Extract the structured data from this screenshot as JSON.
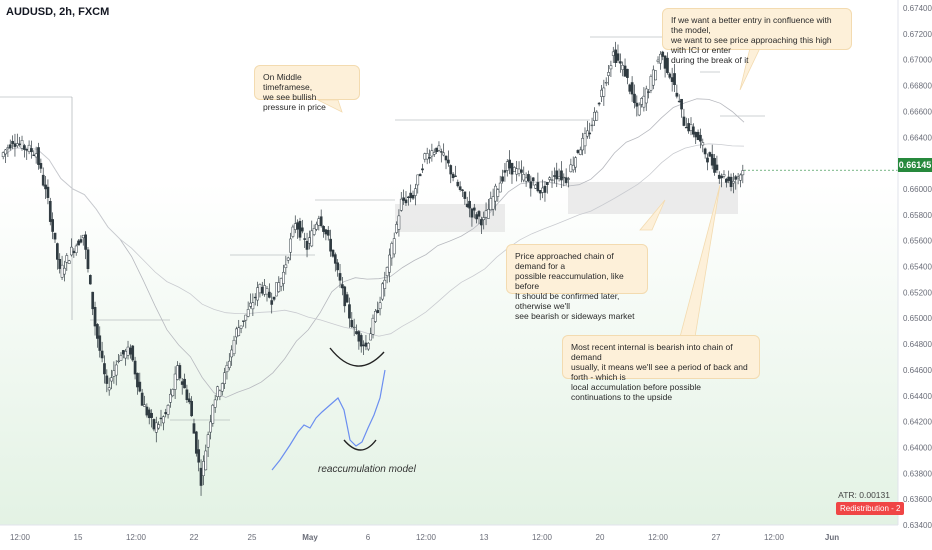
{
  "symbol_title": "AUDUSD, 2h, FXCM",
  "notes": {
    "middle": "On Middle timeframese,\nwe see bullish pressure in price",
    "entry": "If we want a better entry in confluence with the model,\nwe want to see price approaching this high with ICI or enter\nduring the break of it",
    "demand": "Price approached chain of demand for a\npossible reaccumulation, like before\nIt should be confirmed later, otherwise we'll\nsee bearish or sideways market",
    "internal": "Most recent internal is bearish into chain of demand\nusually, it means we'll see a period of back and forth - which is\nlocal accumulation before possible continuations to the upside"
  },
  "model_label": "reaccumulation model",
  "atr_label": "ATR: 0.00131",
  "redistribution_label": "Redistribution - 2",
  "current_price": "0.66145",
  "chart_data": {
    "type": "line",
    "title": "AUDUSD, 2h, FXCM",
    "ylim": [
      0.634,
      0.674
    ],
    "y_ticks": [
      "0.67400",
      "0.67200",
      "0.67000",
      "0.66800",
      "0.66600",
      "0.66400",
      "0.66200",
      "0.66000",
      "0.65800",
      "0.65600",
      "0.65400",
      "0.65200",
      "0.65000",
      "0.64800",
      "0.64600",
      "0.64400",
      "0.64200",
      "0.64000",
      "0.63800",
      "0.63600",
      "0.63400"
    ],
    "x_ticks": [
      "12:00",
      "15",
      "12:00",
      "22",
      "25",
      "May",
      "6",
      "12:00",
      "13",
      "12:00",
      "20",
      "12:00",
      "27",
      "12:00",
      "Jun"
    ],
    "x_tick_bold": [
      "May",
      "Jun"
    ],
    "series": [
      {
        "values": [
          0.6625,
          0.6638,
          0.6632,
          0.6628,
          0.659,
          0.6535,
          0.6552,
          0.6565,
          0.6495,
          0.6445,
          0.647,
          0.6475,
          0.6435,
          0.6415,
          0.6425,
          0.646,
          0.6435,
          0.6375,
          0.6435,
          0.6455,
          0.649,
          0.6505,
          0.6525,
          0.6515,
          0.6535,
          0.6575,
          0.6555,
          0.658,
          0.6555,
          0.652,
          0.649,
          0.6478,
          0.6508,
          0.6545,
          0.659,
          0.6595,
          0.6625,
          0.6632,
          0.6618,
          0.6598,
          0.6582,
          0.6575,
          0.6598,
          0.6618,
          0.6612,
          0.6605,
          0.6598,
          0.6612,
          0.6608,
          0.663,
          0.6645,
          0.6675,
          0.6705,
          0.669,
          0.666,
          0.6678,
          0.6705,
          0.6685,
          0.6652,
          0.6642,
          0.6625,
          0.6612,
          0.6605,
          0.6614
        ]
      }
    ],
    "current_price": 0.66145,
    "annotations": [
      "On Middle timeframese, we see bullish pressure in price",
      "If we want a better entry in confluence with the model, we want to see price approaching this high with ICI or enter during the break of it",
      "Price approached chain of demand for a possible reaccumulation, like before It should be confirmed later, otherwise we'll see bearish or sideways market",
      "Most recent internal is bearish into chain of demand usually, it means we'll see a period of back and forth - which is local accumulation before possible continuations to the upside",
      "reaccumulation model"
    ],
    "grid": false
  },
  "colors": {
    "up_candle": "#2f3a40",
    "down_candle": "#2f3a40",
    "price_badge": "#26893c",
    "redistribution": "#f04545",
    "model_line": "#6b8ef0",
    "note_bg": "#fdf0d9",
    "green_gradient": "#e9f6ea"
  }
}
